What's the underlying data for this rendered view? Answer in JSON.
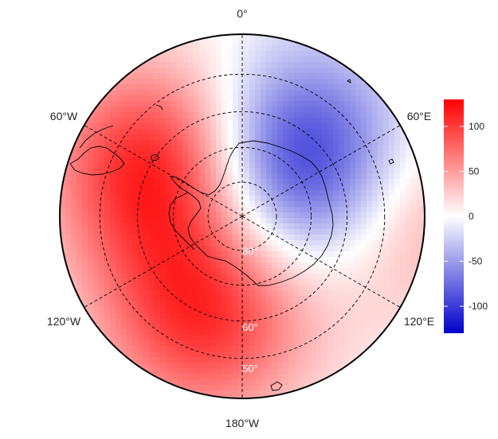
{
  "map": {
    "projection": "south-polar-stereographic",
    "field": "diverging anomaly (red positive, blue negative)",
    "longitude_labels": {
      "top": "0°",
      "upper_left": "60°W",
      "upper_right": "60°E",
      "lower_left": "120°W",
      "lower_right": "120°E",
      "bottom": "180°W"
    },
    "latitude_labels": [
      "80°",
      "60°",
      "50°"
    ],
    "latitude_circles_deg": [
      50,
      60,
      70,
      80
    ],
    "meridian_spacing_deg": 60,
    "lobes": [
      {
        "sign": "positive",
        "center_lon": "60°W",
        "center_lat_deg": -62,
        "peak": 120
      },
      {
        "sign": "positive",
        "center_lon": "160°W",
        "center_lat_deg": -60,
        "peak": 105
      },
      {
        "sign": "negative",
        "center_lon": "50°E",
        "center_lat_deg": -68,
        "peak": -130
      },
      {
        "sign": "positive",
        "center_lon": "90°E",
        "center_lat_deg": -46,
        "peak": 55
      }
    ]
  },
  "colorbar": {
    "ticks": [
      "100",
      "50",
      "0",
      "-50",
      "-100"
    ],
    "tick_values": [
      100,
      50,
      0,
      -50,
      -100
    ],
    "range": [
      -130,
      130
    ],
    "colors": {
      "high": "#ff0000",
      "mid": "#ffffff",
      "low": "#0000cc"
    }
  }
}
